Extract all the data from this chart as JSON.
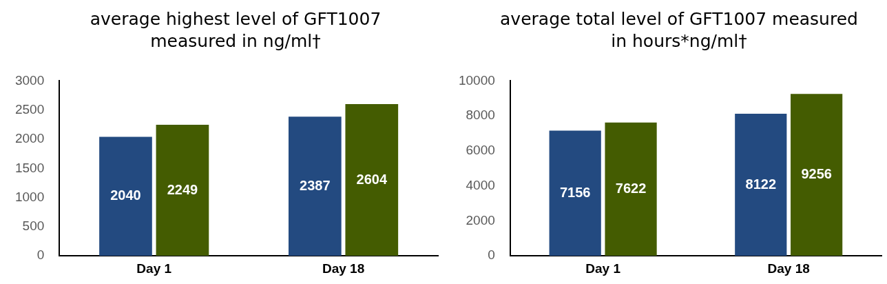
{
  "chart_data": [
    {
      "type": "bar",
      "title": "average highest level of GFT1007 measured in ng/ml†",
      "categories": [
        "Day 1",
        "Day 18"
      ],
      "series": [
        {
          "color": "#234a80",
          "values": [
            2040,
            2387
          ]
        },
        {
          "color": "#445c01",
          "values": [
            2249,
            2604
          ]
        }
      ],
      "ylim": [
        0,
        3000
      ],
      "yticks": [
        0,
        500,
        1000,
        1500,
        2000,
        2500,
        3000
      ],
      "grid": false,
      "legend": false,
      "data_labels": true
    },
    {
      "type": "bar",
      "title": "average total level of GFT1007 measured in hours*ng/ml†",
      "categories": [
        "Day 1",
        "Day 18"
      ],
      "series": [
        {
          "color": "#234a80",
          "values": [
            7156,
            8122
          ]
        },
        {
          "color": "#445c01",
          "values": [
            7622,
            9256
          ]
        }
      ],
      "ylim": [
        0,
        10000
      ],
      "yticks": [
        0,
        2000,
        4000,
        6000,
        8000,
        10000
      ],
      "grid": false,
      "legend": false,
      "data_labels": true
    }
  ]
}
